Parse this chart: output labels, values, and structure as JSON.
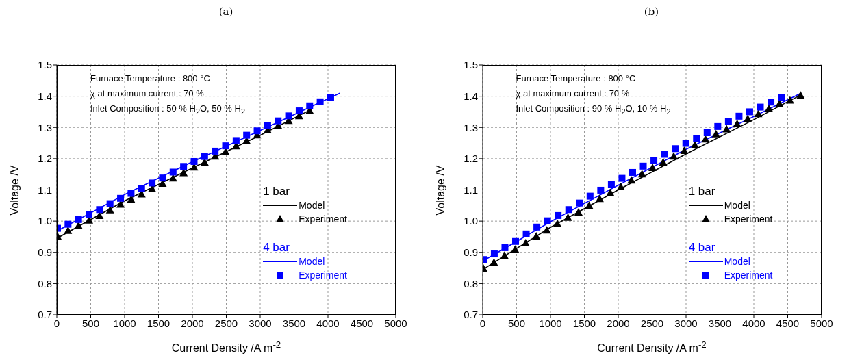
{
  "chart_data": [
    {
      "type": "line",
      "title": "(a)",
      "xlabel": "Current Density /A m$^{-2}$",
      "ylabel": "Voltage /V",
      "xlim": [
        0,
        5000
      ],
      "xticks": [
        0,
        500,
        1000,
        1500,
        2000,
        2500,
        3000,
        3500,
        4000,
        4500,
        5000
      ],
      "ylim": [
        0.7,
        1.5
      ],
      "yticks": [
        0.7,
        0.8,
        0.9,
        {
          "value": 1,
          "label": "1.0"
        },
        1.1,
        1.2,
        1.3,
        1.4,
        1.5
      ],
      "grid": true,
      "legend": "right",
      "annotations": [
        "Furnace Temperature : 800 °C",
        "χ at maximum current : 70 %",
        "Inlet Composition : 50 % H$_{2}$O, 50 % H$_{2}$",
        "1 bar",
        "4 bar"
      ],
      "series": [
        {
          "name": "Model",
          "color": "#000000",
          "marker": "none",
          "x": [
            0,
            1000,
            2000,
            3000,
            3730
          ],
          "values": [
            0.945,
            1.065,
            1.17,
            1.275,
            1.355
          ]
        },
        {
          "name": "Experiment",
          "type": "scatter",
          "color": "#000000",
          "marker": "triangle",
          "x": [
            10,
            165,
            320,
            475,
            630,
            785,
            940,
            1095,
            1250,
            1405,
            1560,
            1715,
            1870,
            2025,
            2180,
            2335,
            2490,
            2645,
            2800,
            2955,
            3110,
            3265,
            3420,
            3575,
            3730
          ],
          "values": [
            0.952,
            0.97,
            0.986,
            1.003,
            1.018,
            1.036,
            1.054,
            1.07,
            1.087,
            1.104,
            1.121,
            1.138,
            1.155,
            1.173,
            1.189,
            1.208,
            1.222,
            1.241,
            1.257,
            1.276,
            1.292,
            1.306,
            1.322,
            1.337,
            1.354
          ]
        },
        {
          "name": "Model",
          "color": "#0000ff",
          "marker": "none",
          "x": [
            0,
            1000,
            2000,
            3000,
            4180
          ],
          "values": [
            0.968,
            1.085,
            1.19,
            1.29,
            1.41
          ]
        },
        {
          "name": "Experiment",
          "type": "scatter",
          "color": "#0000ff",
          "marker": "square",
          "x": [
            10,
            165,
            320,
            475,
            630,
            785,
            940,
            1095,
            1250,
            1405,
            1560,
            1715,
            1870,
            2025,
            2180,
            2335,
            2490,
            2645,
            2800,
            2955,
            3110,
            3265,
            3420,
            3575,
            3730,
            3885,
            4040
          ],
          "values": [
            0.977,
            0.99,
            1.005,
            1.021,
            1.037,
            1.056,
            1.073,
            1.089,
            1.105,
            1.122,
            1.138,
            1.157,
            1.175,
            1.191,
            1.207,
            1.224,
            1.241,
            1.258,
            1.275,
            1.289,
            1.305,
            1.321,
            1.337,
            1.353,
            1.369,
            1.382,
            1.395
          ]
        }
      ]
    },
    {
      "type": "line",
      "title": "(b)",
      "xlabel": "Current Density /A m$^{-2}$",
      "ylabel": "Voltage /V",
      "xlim": [
        0,
        5000
      ],
      "xticks": [
        0,
        500,
        1000,
        1500,
        2000,
        2500,
        3000,
        3500,
        4000,
        4500,
        5000
      ],
      "ylim": [
        0.7,
        1.5
      ],
      "yticks": [
        0.7,
        0.8,
        0.9,
        {
          "value": 1,
          "label": "1.0"
        },
        1.1,
        1.2,
        1.3,
        1.4,
        1.5
      ],
      "grid": true,
      "legend": "right",
      "annotations": [
        "Furnace Temperature : 800 °C",
        "χ at maximum current : 70 %",
        "Inlet Composition : 90 % H$_{2}$O, 10 % H$_{2}$",
        "1 bar",
        "4 bar"
      ],
      "series": [
        {
          "name": "Model",
          "color": "#000000",
          "marker": "none",
          "x": [
            0,
            1000,
            2000,
            3000,
            4000,
            4700
          ],
          "values": [
            0.845,
            0.98,
            1.1,
            1.215,
            1.325,
            1.405
          ]
        },
        {
          "name": "Experiment",
          "type": "scatter",
          "color": "#000000",
          "marker": "triangle",
          "x": [
            10,
            166,
            322,
            478,
            634,
            790,
            946,
            1102,
            1258,
            1414,
            1570,
            1726,
            1882,
            2038,
            2194,
            2350,
            2506,
            2662,
            2818,
            2974,
            3130,
            3286,
            3442,
            3598,
            3754,
            3910,
            4066,
            4222,
            4378,
            4534,
            4690
          ],
          "values": [
            0.849,
            0.868,
            0.89,
            0.91,
            0.93,
            0.952,
            0.971,
            0.992,
            1.012,
            1.029,
            1.05,
            1.072,
            1.091,
            1.11,
            1.131,
            1.151,
            1.171,
            1.189,
            1.208,
            1.226,
            1.244,
            1.263,
            1.279,
            1.295,
            1.312,
            1.328,
            1.344,
            1.361,
            1.376,
            1.387,
            1.403
          ]
        },
        {
          "name": "Model",
          "color": "#0000ff",
          "marker": "none",
          "x": [
            0,
            1000,
            2000,
            3000,
            4000,
            4700
          ],
          "values": [
            0.872,
            0.998,
            1.115,
            1.23,
            1.335,
            1.41
          ]
        },
        {
          "name": "Experiment",
          "type": "scatter",
          "color": "#0000ff",
          "marker": "square",
          "x": [
            14,
            171,
            328,
            485,
            642,
            799,
            956,
            1113,
            1270,
            1427,
            1584,
            1741,
            1898,
            2055,
            2212,
            2369,
            2526,
            2683,
            2840,
            2997,
            3154,
            3311,
            3468,
            3625,
            3782,
            3939,
            4096,
            4253,
            4410
          ],
          "values": [
            0.877,
            0.895,
            0.915,
            0.935,
            0.959,
            0.981,
            1.001,
            1.018,
            1.037,
            1.058,
            1.08,
            1.099,
            1.118,
            1.137,
            1.156,
            1.176,
            1.195,
            1.214,
            1.232,
            1.249,
            1.265,
            1.283,
            1.303,
            1.32,
            1.336,
            1.35,
            1.365,
            1.381,
            1.396
          ]
        }
      ]
    }
  ]
}
